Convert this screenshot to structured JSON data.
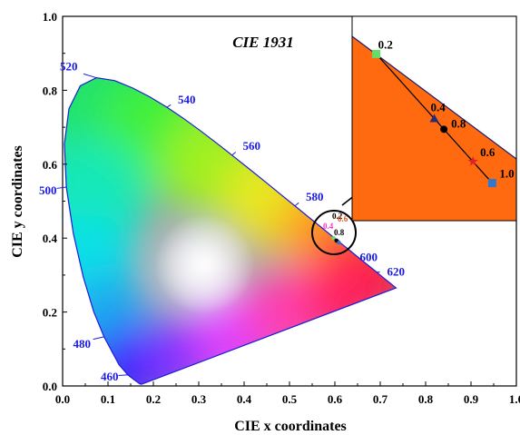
{
  "chart_data": {
    "type": "scatter",
    "title": "CIE 1931",
    "xlabel": "CIE x coordinates",
    "ylabel": "CIE y coordinates",
    "xlim": [
      0.0,
      1.0
    ],
    "ylim": [
      0.0,
      1.0
    ],
    "x_ticks": [
      "0.0",
      "0.1",
      "0.2",
      "0.3",
      "0.4",
      "0.5",
      "0.6",
      "0.7",
      "0.8",
      "0.9",
      "1.0"
    ],
    "y_ticks": [
      "0.0",
      "0.2",
      "0.4",
      "0.6",
      "0.8",
      "1.0"
    ],
    "wavelength_labels": [
      {
        "text": "460",
        "x": 0.144,
        "y": 0.03
      },
      {
        "text": "480",
        "x": 0.091,
        "y": 0.133
      },
      {
        "text": "500",
        "x": 0.008,
        "y": 0.538
      },
      {
        "text": "520",
        "x": 0.074,
        "y": 0.834
      },
      {
        "text": "540",
        "x": 0.23,
        "y": 0.754
      },
      {
        "text": "560",
        "x": 0.373,
        "y": 0.624
      },
      {
        "text": "580",
        "x": 0.512,
        "y": 0.487
      },
      {
        "text": "600",
        "x": 0.627,
        "y": 0.372
      },
      {
        "text": "620",
        "x": 0.691,
        "y": 0.308
      }
    ],
    "series": [
      {
        "name": "0.2",
        "color": "#66dd66",
        "marker": "square",
        "x": 0.597,
        "y": 0.4
      },
      {
        "name": "0.4",
        "color": "#2a2a7a",
        "marker": "triangle",
        "x": 0.603,
        "y": 0.394
      },
      {
        "name": "0.6",
        "color": "#dd2222",
        "marker": "star",
        "x": 0.607,
        "y": 0.39
      },
      {
        "name": "0.8",
        "color": "#000000",
        "marker": "circle",
        "x": 0.604,
        "y": 0.393
      },
      {
        "name": "1.0",
        "color": "#3377cc",
        "marker": "square",
        "x": 0.609,
        "y": 0.388
      }
    ],
    "inset_labels": [
      "0.2",
      "0.4",
      "0.8",
      "0.6",
      "1.0"
    ],
    "main_point_labels": [
      "0.2",
      "0.6",
      "0.4",
      "0.8"
    ]
  },
  "colors": {
    "locus_stroke": "#1c1cd8",
    "inset_fill": "#ff6a10",
    "wavelength_label": "#1a1ae6",
    "label_0_4": "#ff33cc",
    "label_0_6": "#dd5522"
  }
}
